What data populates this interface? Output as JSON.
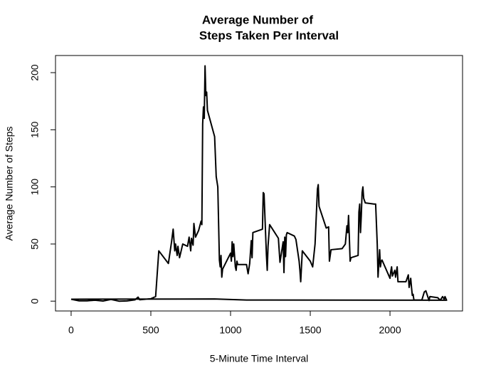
{
  "chart_data": {
    "type": "line",
    "title": [
      "Average Number of",
      "Steps Taken Per Interval"
    ],
    "xlabel": "5-Minute Time Interval",
    "ylabel": "Average Number of Steps",
    "xlim": [
      -98,
      2455
    ],
    "ylim": [
      -8.6,
      215
    ],
    "xticks": [
      0,
      500,
      1000,
      1500,
      2000
    ],
    "yticks": [
      0,
      50,
      100,
      150,
      200
    ],
    "grid": false,
    "series": [
      {
        "color": "#000000",
        "x": [
          0,
          50,
          100,
          150,
          200,
          250,
          300,
          350,
          400,
          420,
          430,
          500,
          530,
          550,
          610,
          630,
          640,
          650,
          655,
          665,
          670,
          680,
          700,
          730,
          740,
          750,
          755,
          765,
          770,
          780,
          800,
          815,
          820,
          825,
          830,
          835,
          840,
          845,
          850,
          855,
          900,
          910,
          920,
          930,
          935,
          940,
          945,
          950,
          1000,
          1005,
          1010,
          1015,
          1020,
          1030,
          1035,
          1040,
          1045,
          1100,
          1110,
          1120,
          1130,
          1135,
          1140,
          1200,
          1205,
          1210,
          1225,
          1230,
          1235,
          1245,
          1300,
          1310,
          1320,
          1330,
          1335,
          1340,
          1345,
          1350,
          1355,
          1400,
          1410,
          1430,
          1435,
          1440,
          1450,
          1500,
          1515,
          1530,
          1545,
          1550,
          1555,
          1600,
          1615,
          1620,
          1630,
          1700,
          1720,
          1730,
          1735,
          1740,
          1745,
          1750,
          1755,
          1800,
          1805,
          1810,
          1815,
          1820,
          1825,
          1830,
          1835,
          1845,
          1900,
          1910,
          1920,
          1925,
          1935,
          1940,
          1945,
          1950,
          2000,
          2005,
          2010,
          2015,
          2030,
          2035,
          2045,
          2050,
          2100,
          2115,
          2120,
          2130,
          2135,
          2140,
          2145,
          2150,
          2200,
          2215,
          2225,
          2245,
          2250,
          2300,
          2315,
          2330,
          2340,
          2345,
          2355,
          1100,
          900,
          0
        ],
        "values": [
          1.7,
          0.3,
          0.3,
          0.8,
          0.1,
          1.5,
          0.0,
          0.2,
          1.1,
          3.5,
          1.2,
          2.1,
          4,
          44,
          33,
          52,
          63,
          44,
          50,
          40,
          48,
          38,
          50,
          48,
          56,
          44,
          55,
          49,
          68,
          56,
          62,
          70,
          67,
          155,
          170,
          160,
          206,
          180,
          183,
          167,
          144,
          109,
          100,
          36,
          30,
          40,
          21,
          28,
          42,
          35,
          52,
          39,
          50,
          30,
          27,
          35,
          32,
          32,
          24,
          33,
          53,
          38,
          60,
          63,
          95,
          94,
          40,
          27,
          48,
          67,
          55,
          34,
          43,
          52,
          25,
          56,
          39,
          58,
          60,
          57,
          54,
          35,
          27,
          17,
          44,
          35,
          30,
          50,
          98,
          102,
          83,
          64,
          65,
          35,
          45,
          46,
          50,
          66,
          60,
          75,
          56,
          35,
          38,
          40,
          78,
          85,
          60,
          75,
          95,
          100,
          90,
          86,
          85,
          85,
          50,
          21,
          45,
          30,
          35,
          36,
          20,
          26,
          30,
          22,
          27,
          21,
          30,
          17,
          17,
          23,
          12,
          20,
          12,
          5,
          6,
          1,
          1,
          8,
          9,
          0.5,
          4,
          3,
          0.8,
          4,
          1.7,
          4,
          0.8,
          1.0,
          1.9,
          1.7
        ]
      }
    ]
  }
}
